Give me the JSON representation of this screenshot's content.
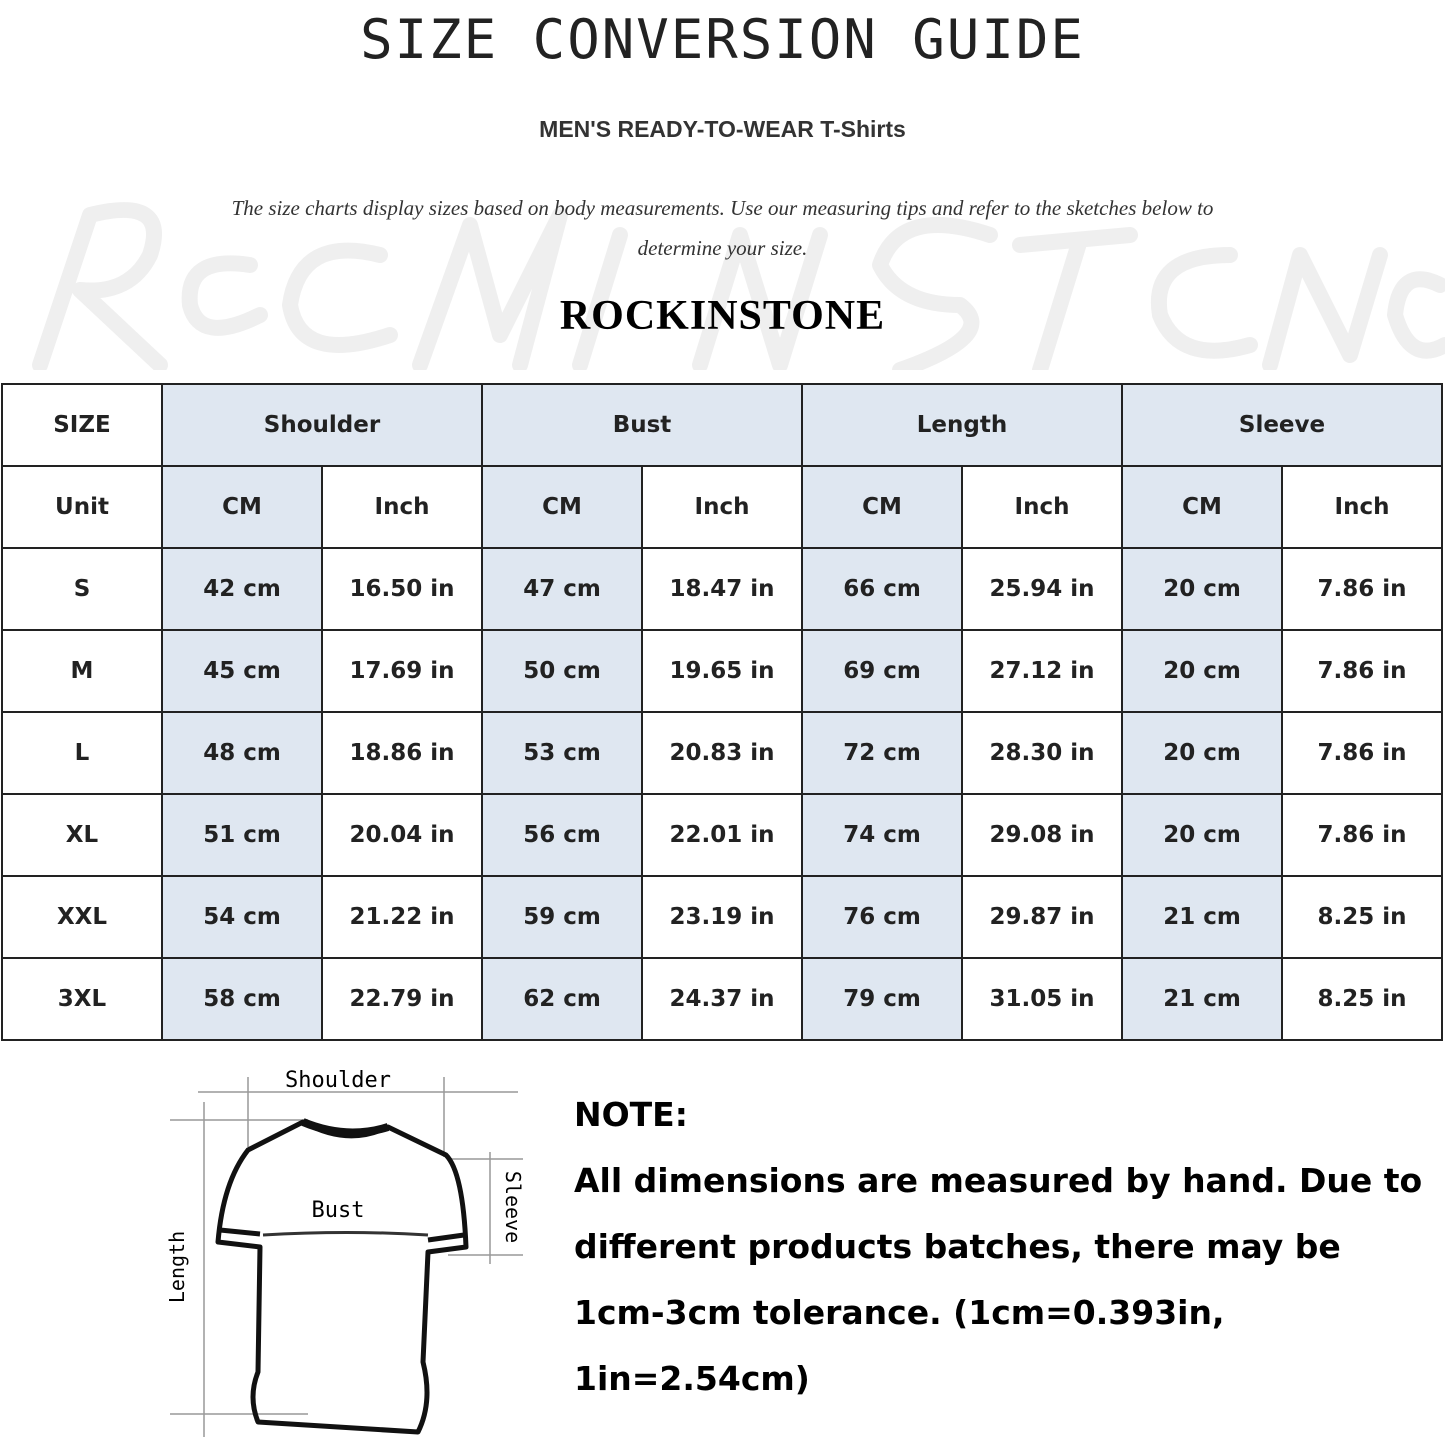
{
  "header": {
    "title": "SIZE CONVERSION GUIDE",
    "subtitle": "MEN'S READY-TO-WEAR T-Shirts",
    "description": "The size charts display sizes based on body measurements. Use our measuring tips and refer to the sketches below to determine your size.",
    "watermark": "Rockinstone",
    "brand": "ROCKINSTONE"
  },
  "table": {
    "size_label": "SIZE",
    "unit_label": "Unit",
    "groups": [
      "Shoulder",
      "Bust",
      "Length",
      "Sleeve"
    ],
    "units": [
      "CM",
      "Inch",
      "CM",
      "Inch",
      "CM",
      "Inch",
      "CM",
      "Inch"
    ],
    "rows": [
      {
        "size": "S",
        "values": [
          "42 cm",
          "16.50 in",
          "47 cm",
          "18.47  in",
          "66 cm",
          "25.94  in",
          "20 cm",
          "7.86  in"
        ]
      },
      {
        "size": "M",
        "values": [
          "45 cm",
          "17.69  in",
          "50 cm",
          "19.65  in",
          "69 cm",
          "27.12  in",
          "20 cm",
          "7.86  in"
        ]
      },
      {
        "size": "L",
        "values": [
          "48 cm",
          "18.86  in",
          "53 cm",
          "20.83  in",
          "72 cm",
          "28.30  in",
          "20 cm",
          "7.86  in"
        ]
      },
      {
        "size": "XL",
        "values": [
          "51 cm",
          "20.04  in",
          "56 cm",
          "22.01  in",
          "74 cm",
          "29.08  in",
          "20 cm",
          "7.86  in"
        ]
      },
      {
        "size": "XXL",
        "values": [
          "54 cm",
          "21.22  in",
          "59 cm",
          "23.19  in",
          "76 cm",
          "29.87  in",
          "21 cm",
          "8.25  in"
        ]
      },
      {
        "size": "3XL",
        "values": [
          "58 cm",
          "22.79  in",
          "62 cm",
          "24.37  in",
          "79 cm",
          "31.05  in",
          "21 cm",
          "8.25  in"
        ]
      }
    ]
  },
  "diagram": {
    "shoulder": "Shoulder",
    "bust": "Bust",
    "sleeve": "Sleeve",
    "length": "Length"
  },
  "note": {
    "heading": "NOTE:",
    "text": "All dimensions are measured by hand. Due to different products batches, there may be 1cm-3cm tolerance. (1cm=0.393in, 1in=2.54cm)"
  },
  "colors": {
    "header_fill": "#dfe7f1",
    "border": "#222222"
  }
}
